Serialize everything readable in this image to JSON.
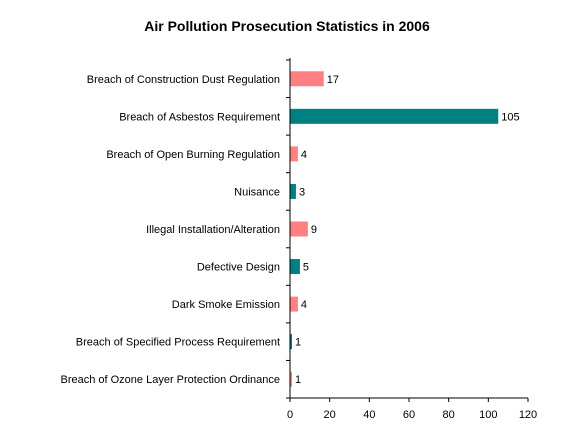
{
  "chart_data": {
    "type": "bar",
    "orientation": "horizontal",
    "title": "Air Pollution Prosecution Statistics in 2006",
    "categories": [
      "Breach of Construction Dust Regulation",
      "Breach of Asbestos Requirement",
      "Breach of Open Burning Regulation",
      "Nuisance",
      "Illegal Installation/Alteration",
      "Defective Design",
      "Dark Smoke Emission",
      "Breach of Specified Process Requirement",
      "Breach of Ozone Layer Protection Ordinance"
    ],
    "values": [
      17,
      105,
      4,
      3,
      9,
      5,
      4,
      1,
      1
    ],
    "value_labels": [
      "17",
      "105",
      "4",
      "3",
      "9",
      "5",
      "4",
      "1",
      "1"
    ],
    "bar_colors": [
      "#ff8080",
      "#008080",
      "#ff8080",
      "#008080",
      "#ff8080",
      "#008080",
      "#ff8080",
      "#008080",
      "#ff8080"
    ],
    "xlim": [
      0,
      120
    ],
    "x_ticks": [
      0,
      20,
      40,
      60,
      80,
      100,
      120
    ],
    "x_tick_labels": [
      "0",
      "20",
      "40",
      "60",
      "80",
      "100",
      "120"
    ],
    "xlabel": "",
    "ylabel": "",
    "grid": false,
    "legend": "none"
  }
}
